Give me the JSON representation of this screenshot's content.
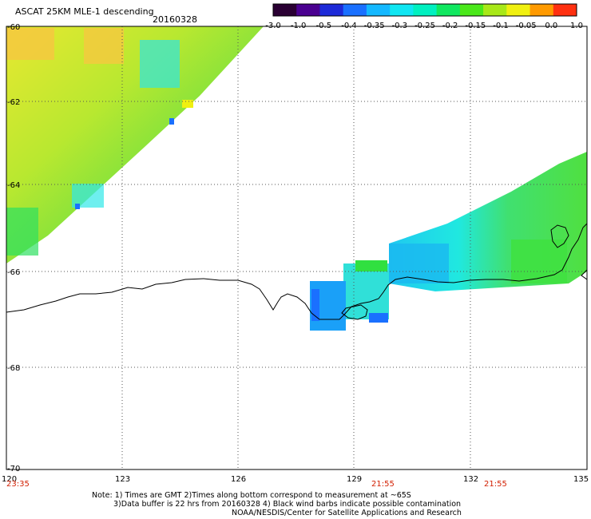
{
  "header": {
    "title": "ASCAT 25KM MLE-1 descending",
    "date": "20160328"
  },
  "colorbar": {
    "ticks": [
      "-3.0",
      "-1.0",
      "-0.5",
      "-0.4",
      "-0.35",
      "-0.3",
      "-0.25",
      "-0.2",
      "-0.15",
      "-0.1",
      "-0.05",
      "0.0",
      "1.0"
    ],
    "colors": [
      "#2a0033",
      "#4a0090",
      "#1d2ad8",
      "#1a70ff",
      "#14b8ff",
      "#10e6f2",
      "#00f0c0",
      "#10e860",
      "#4ae81a",
      "#a8e818",
      "#f0f010",
      "#ff9a00",
      "#ff3010"
    ]
  },
  "axes": {
    "lat_labels": [
      "-60",
      "-62",
      "-64",
      "-66",
      "-68",
      "-70"
    ],
    "lon_labels": [
      "120",
      "123",
      "126",
      "129",
      "132",
      "135"
    ]
  },
  "times": [
    "23:35",
    "21:55",
    "21:55"
  ],
  "notes": {
    "line1": "Note: 1) Times are GMT 2)Times along bottom correspond to measurement at ~65S",
    "line2": "3)Data buffer is 22 hrs from 20160328 4) Black wind barbs indicate possible contamination",
    "line3": "NOAA/NESDIS/Center for Satellite Applications and Research"
  }
}
